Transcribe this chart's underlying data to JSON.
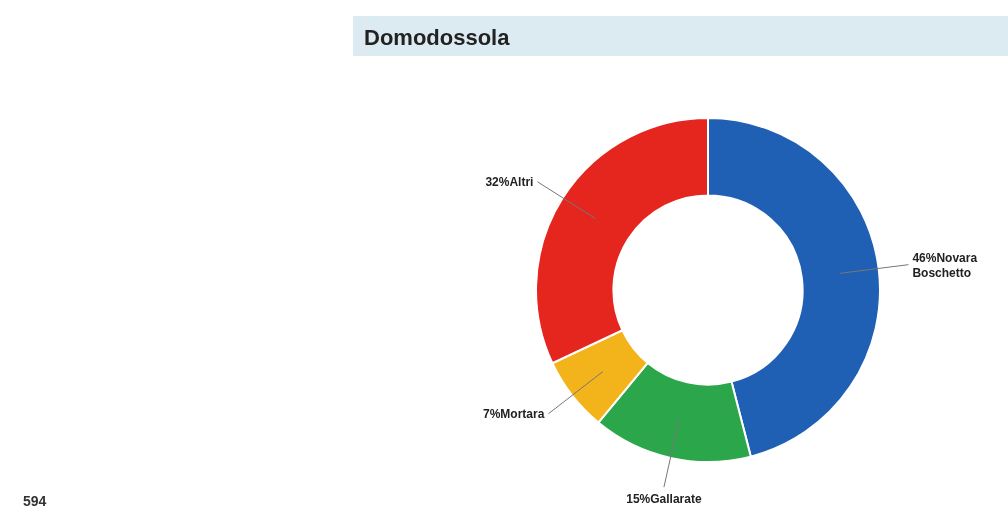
{
  "chart_data": {
    "type": "donut",
    "title": "Domodossola",
    "categories": [
      "Novara Boschetto",
      "Gallarate",
      "Mortara",
      "Altri"
    ],
    "values": [
      46,
      15,
      7,
      32
    ],
    "value_labels": [
      "46%",
      "15%",
      "7%",
      "32%"
    ],
    "colors": [
      "#1f5fb4",
      "#2ca64a",
      "#f3b31b",
      "#e4261f"
    ],
    "annotations": [
      "594"
    ]
  }
}
